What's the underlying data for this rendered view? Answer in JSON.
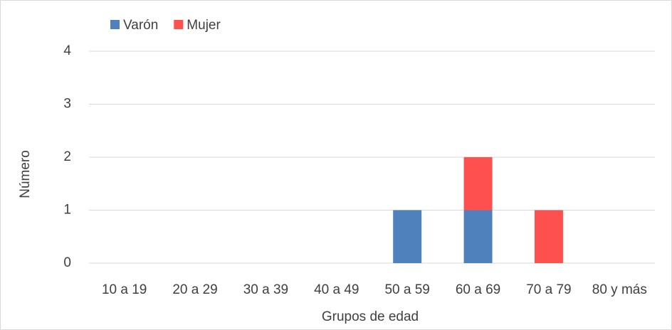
{
  "chart_data": {
    "type": "stacked-bar",
    "categories": [
      "10 a 19",
      "20 a 29",
      "30 a 39",
      "40 a 49",
      "50 a 59",
      "60 a 69",
      "70 a 79",
      "80 y más"
    ],
    "series": [
      {
        "name": "Varón",
        "color": "#4f81bd",
        "values": [
          0,
          0,
          0,
          0,
          1,
          1,
          0,
          0
        ]
      },
      {
        "name": "Mujer",
        "color": "#ff5050",
        "values": [
          0,
          0,
          0,
          0,
          0,
          1,
          1,
          0
        ]
      }
    ],
    "xlabel": "Grupos de edad",
    "ylabel": "Número",
    "ylim": [
      0,
      4
    ],
    "yticks": [
      0,
      1,
      2,
      3,
      4
    ],
    "grid": true,
    "legend": "top"
  }
}
